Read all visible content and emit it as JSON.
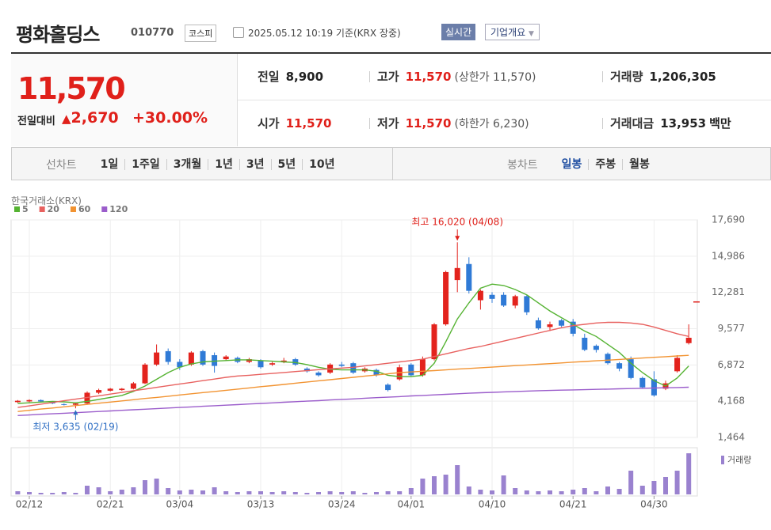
{
  "header": {
    "name": "평화홀딩스",
    "code": "010770",
    "market": "코스피",
    "timestamp": "2025.05.12 10:19 기준(KRX 장중)",
    "realtime": "실시간",
    "company_info": "기업개요"
  },
  "quote": {
    "price": "11,570",
    "change_label": "전일대비",
    "change": "2,670",
    "change_pct": "+30.00%",
    "stats": [
      {
        "label": "전일",
        "value": "8,900"
      },
      {
        "label": "고가",
        "value": "11,570",
        "note": "(상한가 11,570)"
      },
      {
        "label": "거래량",
        "value": "1,206,305"
      },
      {
        "label": "시가",
        "value": "11,570"
      },
      {
        "label": "저가",
        "value": "11,570",
        "note": "(하한가 6,230)"
      },
      {
        "label": "거래대금",
        "value": "13,953",
        "unit": "백만"
      }
    ]
  },
  "tabs": {
    "line_label": "선차트",
    "line_periods": [
      "1일",
      "1주일",
      "3개월",
      "1년",
      "3년",
      "5년",
      "10년"
    ],
    "candle_label": "봉차트",
    "candle_periods": [
      "일봉",
      "주봉",
      "월봉"
    ],
    "active": "일봉"
  },
  "chart_data": {
    "type": "candlestick",
    "source": "한국거래소(KRX)",
    "categories": [
      null,
      "02/12",
      null,
      null,
      null,
      null,
      null,
      null,
      "02/21",
      null,
      null,
      null,
      null,
      null,
      "03/04",
      null,
      null,
      null,
      null,
      null,
      null,
      "03/13",
      null,
      null,
      null,
      null,
      null,
      null,
      "03/24",
      null,
      null,
      null,
      null,
      null,
      "04/01",
      null,
      null,
      null,
      null,
      null,
      null,
      "04/10",
      null,
      null,
      null,
      null,
      null,
      null,
      "04/21",
      null,
      null,
      null,
      null,
      null,
      null,
      "04/30",
      null,
      null,
      null
    ],
    "open": [
      4100,
      4150,
      4250,
      4100,
      3950,
      3900,
      4000,
      4800,
      4950,
      5000,
      5100,
      5500,
      6900,
      7900,
      7100,
      6900,
      7900,
      7600,
      7300,
      7400,
      7100,
      7200,
      6900,
      7100,
      7300,
      6600,
      6300,
      6300,
      6900,
      7000,
      6400,
      6500,
      5400,
      5800,
      6900,
      6100,
      7300,
      9900,
      13200,
      14400,
      11700,
      12100,
      12100,
      11300,
      12000,
      10200,
      9700,
      10200,
      10100,
      8900,
      8300,
      7700,
      7000,
      7300,
      5900,
      5800,
      5100,
      6400,
      8500
    ],
    "high": [
      4250,
      4300,
      4300,
      4150,
      4000,
      4050,
      4900,
      5100,
      5150,
      5150,
      5600,
      7000,
      8400,
      8100,
      7300,
      7900,
      8000,
      7800,
      7600,
      7500,
      7400,
      7300,
      7100,
      7400,
      7400,
      6700,
      6400,
      7000,
      7100,
      7100,
      6700,
      6600,
      5500,
      6900,
      7000,
      7500,
      10000,
      13900,
      16020,
      14900,
      12500,
      12300,
      12300,
      12100,
      12100,
      10400,
      10100,
      10300,
      10300,
      9200,
      8400,
      7800,
      7100,
      7500,
      6000,
      6400,
      5700,
      7600,
      9900
    ],
    "low": [
      4050,
      4100,
      4100,
      3950,
      3850,
      3635,
      3950,
      4700,
      4900,
      4950,
      5050,
      5450,
      6800,
      6900,
      6500,
      6800,
      6800,
      6300,
      7200,
      7000,
      7000,
      6600,
      6800,
      7000,
      6800,
      6300,
      6000,
      6200,
      6700,
      6200,
      6300,
      6000,
      4900,
      5700,
      6000,
      6000,
      7200,
      9800,
      12300,
      12200,
      11000,
      11500,
      11200,
      11100,
      10600,
      9500,
      9400,
      9700,
      9000,
      7900,
      7800,
      6900,
      6400,
      5800,
      5100,
      4500,
      5000,
      6300,
      8400
    ],
    "close": [
      4200,
      4250,
      4150,
      4000,
      3900,
      4000,
      4800,
      5000,
      5100,
      5100,
      5500,
      6900,
      7800,
      7100,
      6700,
      7800,
      6900,
      6800,
      7500,
      7100,
      7300,
      6700,
      7000,
      7200,
      6900,
      6400,
      6100,
      6900,
      6800,
      6300,
      6600,
      6100,
      5000,
      6700,
      6100,
      7300,
      9900,
      13800,
      14100,
      12400,
      12400,
      11800,
      11300,
      12000,
      10800,
      9600,
      9900,
      9800,
      9200,
      8000,
      8000,
      7000,
      6600,
      5900,
      5200,
      4600,
      5500,
      7400,
      8900
    ],
    "up_color": "#e3231d",
    "down_color": "#2f7ad6",
    "ma": [
      {
        "name": "5",
        "color": "#55b332",
        "values": [
          4000,
          4050,
          4100,
          4150,
          4120,
          4050,
          4150,
          4300,
          4450,
          4600,
          4900,
          5300,
          5800,
          6300,
          6700,
          6950,
          7100,
          7150,
          7200,
          7250,
          7250,
          7200,
          7150,
          7100,
          7050,
          6900,
          6700,
          6550,
          6500,
          6500,
          6500,
          6400,
          6100,
          6000,
          6000,
          6100,
          7000,
          8600,
          10300,
          11500,
          12600,
          12900,
          12800,
          12500,
          12100,
          11500,
          10900,
          10400,
          9900,
          9400,
          9000,
          8400,
          7800,
          7000,
          6300,
          5700,
          5300,
          5900,
          6800
        ]
      },
      {
        "name": "20",
        "color": "#e8615f",
        "values": [
          3700,
          3820,
          3950,
          4070,
          4200,
          4320,
          4450,
          4570,
          4700,
          4820,
          4950,
          5070,
          5200,
          5320,
          5450,
          5570,
          5700,
          5820,
          5950,
          6050,
          6100,
          6170,
          6240,
          6310,
          6380,
          6450,
          6520,
          6580,
          6640,
          6700,
          6800,
          6900,
          7000,
          7100,
          7200,
          7300,
          7500,
          7700,
          7900,
          8100,
          8250,
          8450,
          8650,
          8850,
          9050,
          9250,
          9450,
          9650,
          9800,
          9900,
          10000,
          10050,
          10050,
          10000,
          9900,
          9700,
          9450,
          9200,
          9000
        ]
      },
      {
        "name": "60",
        "color": "#f29331",
        "values": [
          3400,
          3490,
          3580,
          3660,
          3750,
          3840,
          3930,
          4020,
          4100,
          4190,
          4280,
          4370,
          4450,
          4540,
          4630,
          4720,
          4810,
          4890,
          4980,
          5070,
          5160,
          5250,
          5330,
          5420,
          5510,
          5600,
          5690,
          5770,
          5860,
          5950,
          6040,
          6120,
          6210,
          6300,
          6350,
          6400,
          6450,
          6500,
          6560,
          6610,
          6660,
          6710,
          6760,
          6820,
          6870,
          6920,
          6970,
          7020,
          7080,
          7130,
          7180,
          7230,
          7280,
          7340,
          7390,
          7440,
          7490,
          7540,
          7590
        ]
      },
      {
        "name": "120",
        "color": "#9b5dcb",
        "values": [
          3100,
          3140,
          3190,
          3230,
          3270,
          3310,
          3360,
          3400,
          3440,
          3490,
          3530,
          3570,
          3610,
          3660,
          3700,
          3740,
          3790,
          3830,
          3870,
          3910,
          3960,
          4000,
          4040,
          4090,
          4130,
          4170,
          4210,
          4260,
          4300,
          4340,
          4390,
          4430,
          4470,
          4510,
          4560,
          4600,
          4640,
          4680,
          4720,
          4760,
          4800,
          4830,
          4860,
          4890,
          4920,
          4950,
          4970,
          4990,
          5010,
          5030,
          5050,
          5070,
          5090,
          5110,
          5130,
          5150,
          5170,
          5190,
          5210
        ]
      }
    ],
    "volume": {
      "name": "거래량",
      "color": "#9a82cf",
      "values": [
        160000,
        120000,
        80000,
        80000,
        120000,
        80000,
        440000,
        360000,
        160000,
        240000,
        360000,
        720000,
        800000,
        320000,
        200000,
        240000,
        200000,
        360000,
        160000,
        120000,
        160000,
        160000,
        120000,
        160000,
        120000,
        80000,
        120000,
        160000,
        120000,
        160000,
        80000,
        120000,
        160000,
        160000,
        320000,
        800000,
        920000,
        1000000,
        1480000,
        400000,
        240000,
        200000,
        960000,
        320000,
        200000,
        160000,
        200000,
        160000,
        240000,
        320000,
        160000,
        400000,
        280000,
        1200000,
        440000,
        680000,
        880000,
        1200000,
        2080000
      ]
    },
    "high_label": "최고 16,020 (04/08)",
    "low_label": "최저 3,635 (02/19)",
    "last_price": 11570,
    "ylim": [
      1464,
      17690
    ],
    "yticks": [
      {
        "value": 1464,
        "label": "1,464"
      },
      {
        "value": 4168,
        "label": "4,168"
      },
      {
        "value": 6872,
        "label": "6,872"
      },
      {
        "value": 9577,
        "label": "9,577"
      },
      {
        "value": 12281,
        "label": "12,281"
      },
      {
        "value": 14986,
        "label": "14,986"
      },
      {
        "value": 17690,
        "label": "17,690"
      }
    ],
    "grid": true
  }
}
